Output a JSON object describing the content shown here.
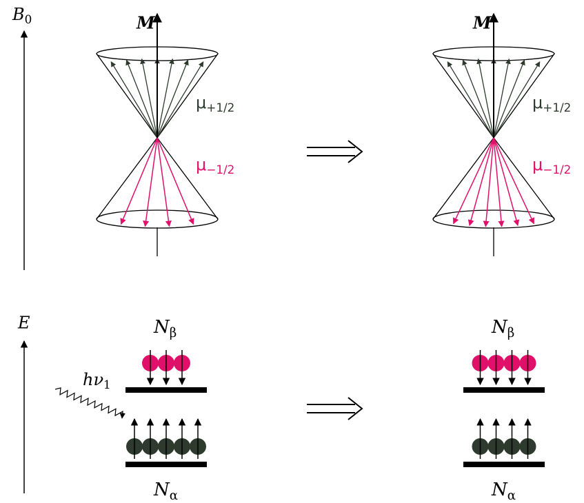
{
  "axes": {
    "field": {
      "main": "B",
      "sub": "0"
    },
    "energy": "E"
  },
  "cones": [
    {
      "magnetization": "M",
      "upper": {
        "main": "μ",
        "sub": "+1/2"
      },
      "lower": {
        "main": "μ",
        "sub": "−1/2"
      }
    },
    {
      "magnetization": "M",
      "upper": {
        "main": "μ",
        "sub": "+1/2"
      },
      "lower": {
        "main": "μ",
        "sub": "−1/2"
      }
    }
  ],
  "levels": [
    {
      "upper": {
        "main": "N",
        "sub": "β"
      },
      "lower": {
        "main": "N",
        "sub": "α"
      },
      "photon": {
        "main": "hν",
        "sub": "1"
      }
    },
    {
      "upper": {
        "main": "N",
        "sub": "β"
      },
      "lower": {
        "main": "N",
        "sub": "α"
      }
    }
  ]
}
